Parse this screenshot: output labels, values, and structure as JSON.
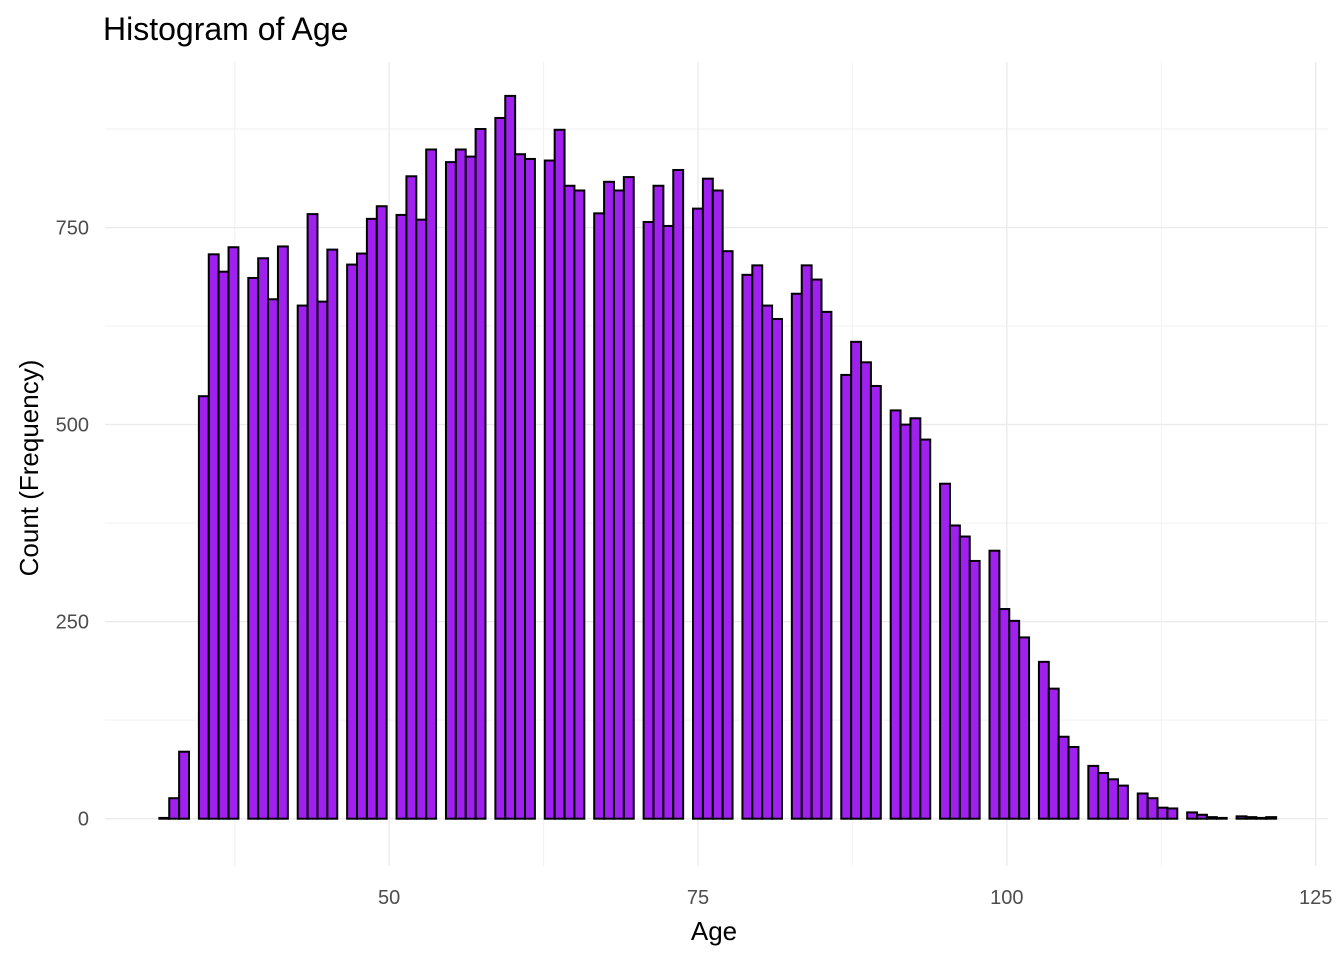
{
  "chart_data": {
    "type": "bar",
    "title": "Histogram of Age",
    "xlabel": "Age",
    "ylabel": "Count (Frequency)",
    "xlim": [
      27,
      126
    ],
    "ylim": [
      -60,
      960
    ],
    "x_ticks": [
      50,
      75,
      100,
      125
    ],
    "y_ticks": [
      0,
      250,
      500,
      750
    ],
    "bar_fill": "#a020f0",
    "bar_outline": "#000000",
    "grid": true,
    "legend": "none",
    "x": [
      31.8,
      32.6,
      33.4,
      34.2,
      35.0,
      35.8,
      36.6,
      37.4,
      38.2,
      39.0,
      39.8,
      40.6,
      41.4,
      42.2,
      43.0,
      43.8,
      44.6,
      45.4,
      46.2,
      47.0,
      47.8,
      48.6,
      49.4,
      50.2,
      51.0,
      51.8,
      52.6,
      53.4,
      54.2,
      55.0,
      55.8,
      56.6,
      57.4,
      58.2,
      59.0,
      59.8,
      60.6,
      61.4,
      62.2,
      63.0,
      63.8,
      64.6,
      65.4,
      66.2,
      67.0,
      67.8,
      68.6,
      69.4,
      70.2,
      71.0,
      71.8,
      72.6,
      73.4,
      74.2,
      75.0,
      75.8,
      76.6,
      77.4,
      78.2,
      79.0,
      79.8,
      80.6,
      81.4,
      82.2,
      83.0,
      83.8,
      84.6,
      85.4,
      86.2,
      87.0,
      87.8,
      88.6,
      89.4,
      90.2,
      91.0,
      91.8,
      92.6,
      93.4,
      94.2,
      95.0,
      95.8,
      96.6,
      97.4,
      98.2,
      99.0,
      99.8,
      100.6,
      101.4,
      102.2,
      103.0,
      103.8,
      104.6,
      105.4,
      106.2,
      107.0,
      107.8,
      108.6,
      109.4,
      110.2,
      111.0,
      111.8,
      112.6,
      113.4,
      114.2,
      115.0,
      115.8,
      116.6,
      117.4,
      118.2,
      119.0,
      119.8,
      120.6,
      121.4
    ],
    "values": [
      1,
      26,
      85,
      0,
      536,
      716,
      694,
      725,
      0,
      686,
      711,
      659,
      726,
      0,
      651,
      767,
      656,
      722,
      0,
      703,
      717,
      761,
      777,
      0,
      766,
      815,
      760,
      849,
      0,
      833,
      849,
      840,
      875,
      0,
      889,
      917,
      843,
      837,
      0,
      835,
      874,
      803,
      797,
      0,
      768,
      808,
      797,
      814,
      0,
      757,
      803,
      752,
      823,
      0,
      774,
      812,
      797,
      720,
      0,
      690,
      702,
      651,
      634,
      0,
      666,
      702,
      684,
      643,
      0,
      563,
      605,
      579,
      549,
      0,
      518,
      500,
      508,
      481,
      0,
      425,
      372,
      358,
      327,
      0,
      340,
      266,
      251,
      230,
      0,
      199,
      165,
      104,
      91,
      0,
      67,
      58,
      50,
      42,
      0,
      32,
      26,
      14,
      13,
      0,
      8,
      5,
      2,
      1,
      0,
      3,
      2,
      1,
      2
    ]
  }
}
